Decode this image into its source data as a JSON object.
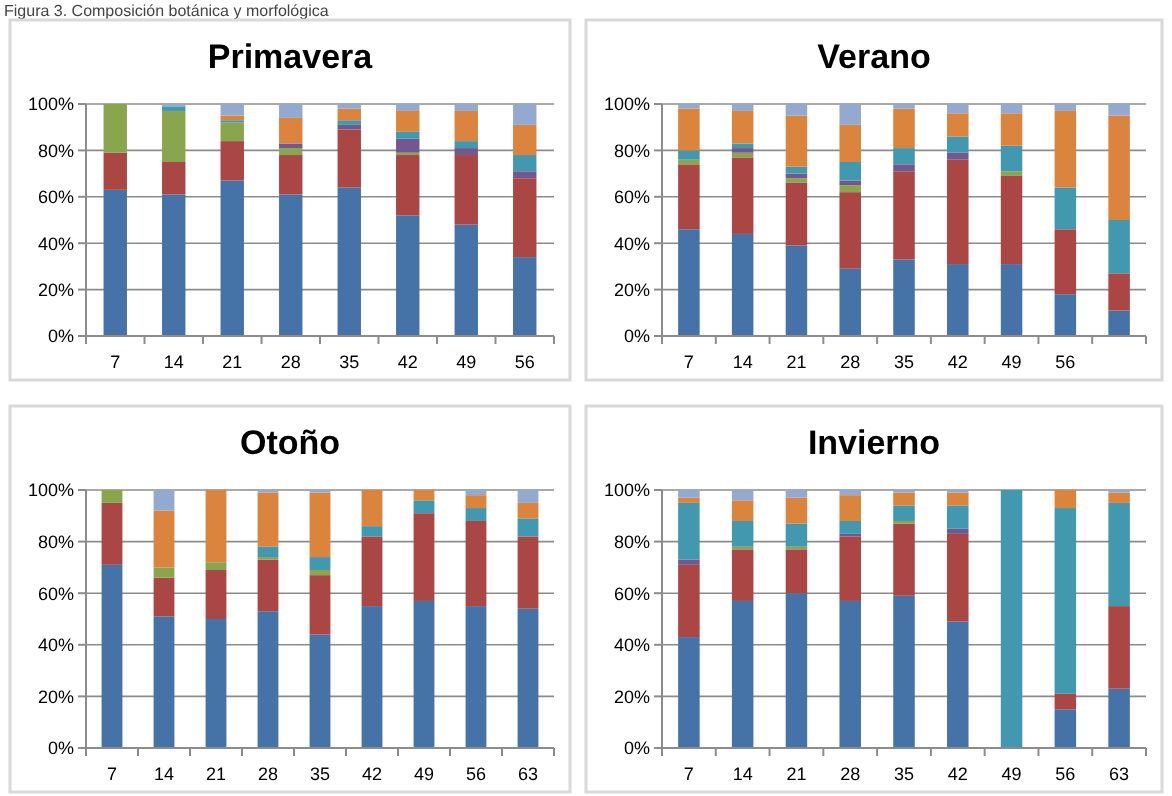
{
  "chart_data": [
    {
      "type": "bar",
      "title": "Primavera",
      "annotations": [
        "Figura 3. Composición botánica y morfológica"
      ],
      "stacked": true,
      "grid": "y",
      "ylim": [
        0,
        100
      ],
      "yticks": [
        {
          "value": 0,
          "label": "0%"
        },
        {
          "value": 20,
          "label": "20%"
        },
        {
          "value": 40,
          "label": "40%"
        },
        {
          "value": 60,
          "label": "60%"
        },
        {
          "value": 80,
          "label": "80%"
        },
        {
          "value": 100,
          "label": "100%"
        }
      ],
      "categories": [
        "7",
        "14",
        "21",
        "28",
        "35",
        "42",
        "49",
        "56"
      ],
      "series": [
        {
          "color": "#4572a7",
          "values": [
            63,
            61,
            67,
            61,
            64,
            52,
            48,
            34
          ]
        },
        {
          "color": "#aa4643",
          "values": [
            16,
            14,
            17,
            17,
            25,
            26,
            30,
            34
          ]
        },
        {
          "color": "#89a54e",
          "values": [
            21,
            22,
            8,
            3,
            null,
            1,
            null,
            null
          ]
        },
        {
          "color": "#71588f",
          "values": [
            null,
            null,
            null,
            2,
            2,
            6,
            3,
            3
          ]
        },
        {
          "color": "#4198af",
          "values": [
            null,
            2,
            1,
            null,
            2,
            3,
            3,
            7
          ]
        },
        {
          "color": "#db843d",
          "values": [
            null,
            null,
            2,
            11,
            5,
            9,
            13,
            13
          ]
        },
        {
          "color": "#93a9cf",
          "values": [
            null,
            1,
            5,
            6,
            2,
            3,
            3,
            9
          ]
        }
      ]
    },
    {
      "type": "bar",
      "title": "Verano",
      "stacked": true,
      "grid": "y",
      "ylim": [
        0,
        100
      ],
      "yticks": [
        {
          "value": 0,
          "label": "0%"
        },
        {
          "value": 20,
          "label": "20%"
        },
        {
          "value": 40,
          "label": "40%"
        },
        {
          "value": 60,
          "label": "60%"
        },
        {
          "value": 80,
          "label": "80%"
        },
        {
          "value": 100,
          "label": "100%"
        }
      ],
      "categories": [
        "7",
        "14",
        "21",
        "28",
        "35",
        "42",
        "49",
        "56",
        null
      ],
      "series": [
        {
          "color": "#4572a7",
          "values": [
            46,
            44,
            39,
            29,
            33,
            31,
            31,
            18,
            11
          ]
        },
        {
          "color": "#aa4643",
          "values": [
            28,
            33,
            27,
            33,
            38,
            45,
            38,
            28,
            16
          ]
        },
        {
          "color": "#89a54e",
          "values": [
            2,
            2,
            2,
            3,
            null,
            null,
            2,
            null,
            null
          ]
        },
        {
          "color": "#71588f",
          "values": [
            null,
            2,
            2,
            2,
            3,
            3,
            null,
            null,
            null
          ]
        },
        {
          "color": "#4198af",
          "values": [
            4,
            2,
            3,
            8,
            7,
            7,
            11,
            18,
            23
          ]
        },
        {
          "color": "#db843d",
          "values": [
            18,
            14,
            22,
            16,
            17,
            10,
            14,
            33,
            45
          ]
        },
        {
          "color": "#93a9cf",
          "values": [
            2,
            3,
            5,
            9,
            2,
            4,
            4,
            3,
            5
          ]
        }
      ]
    },
    {
      "type": "bar",
      "title": "Otoño",
      "stacked": true,
      "grid": "y",
      "ylim": [
        0,
        100
      ],
      "yticks": [
        {
          "value": 0,
          "label": "0%"
        },
        {
          "value": 20,
          "label": "20%"
        },
        {
          "value": 40,
          "label": "40%"
        },
        {
          "value": 60,
          "label": "60%"
        },
        {
          "value": 80,
          "label": "80%"
        },
        {
          "value": 100,
          "label": "100%"
        }
      ],
      "categories": [
        "7",
        "14",
        "21",
        "28",
        "35",
        "42",
        "49",
        "56",
        "63"
      ],
      "series": [
        {
          "color": "#4572a7",
          "values": [
            71,
            51,
            50,
            53,
            44,
            55,
            57,
            55,
            54
          ]
        },
        {
          "color": "#aa4643",
          "values": [
            24,
            15,
            19,
            20,
            23,
            27,
            34,
            33,
            28
          ]
        },
        {
          "color": "#89a54e",
          "values": [
            5,
            4,
            3,
            1,
            2,
            null,
            null,
            null,
            null
          ]
        },
        {
          "color": "#4198af",
          "values": [
            null,
            null,
            null,
            4,
            5,
            4,
            5,
            5,
            7
          ]
        },
        {
          "color": "#db843d",
          "values": [
            null,
            22,
            28,
            21,
            25,
            14,
            4,
            5,
            6
          ]
        },
        {
          "color": "#93a9cf",
          "values": [
            null,
            8,
            null,
            1,
            1,
            null,
            null,
            2,
            5
          ]
        }
      ]
    },
    {
      "type": "bar",
      "title": "Invierno",
      "stacked": true,
      "grid": "y",
      "ylim": [
        0,
        100
      ],
      "yticks": [
        {
          "value": 0,
          "label": "0%"
        },
        {
          "value": 20,
          "label": "20%"
        },
        {
          "value": 40,
          "label": "40%"
        },
        {
          "value": 60,
          "label": "60%"
        },
        {
          "value": 80,
          "label": "80%"
        },
        {
          "value": 100,
          "label": "100%"
        }
      ],
      "categories": [
        "7",
        "14",
        "21",
        "28",
        "35",
        "42",
        "49",
        "56",
        "63"
      ],
      "series": [
        {
          "color": "#4572a7",
          "values": [
            43,
            57,
            60,
            57,
            59,
            49,
            null,
            15,
            23
          ]
        },
        {
          "color": "#aa4643",
          "values": [
            28,
            20,
            17,
            25,
            28,
            34,
            null,
            6,
            32
          ]
        },
        {
          "color": "#89a54e",
          "values": [
            null,
            1,
            1,
            null,
            1,
            null,
            null,
            null,
            null
          ]
        },
        {
          "color": "#71588f",
          "values": [
            2,
            null,
            null,
            1,
            null,
            2,
            null,
            null,
            null
          ]
        },
        {
          "color": "#4198af",
          "values": [
            22,
            10,
            9,
            5,
            6,
            9,
            100,
            72,
            40
          ]
        },
        {
          "color": "#db843d",
          "values": [
            2,
            8,
            10,
            10,
            5,
            5,
            null,
            7,
            4
          ]
        },
        {
          "color": "#93a9cf",
          "values": [
            3,
            4,
            3,
            2,
            1,
            1,
            null,
            null,
            1
          ]
        }
      ]
    }
  ]
}
